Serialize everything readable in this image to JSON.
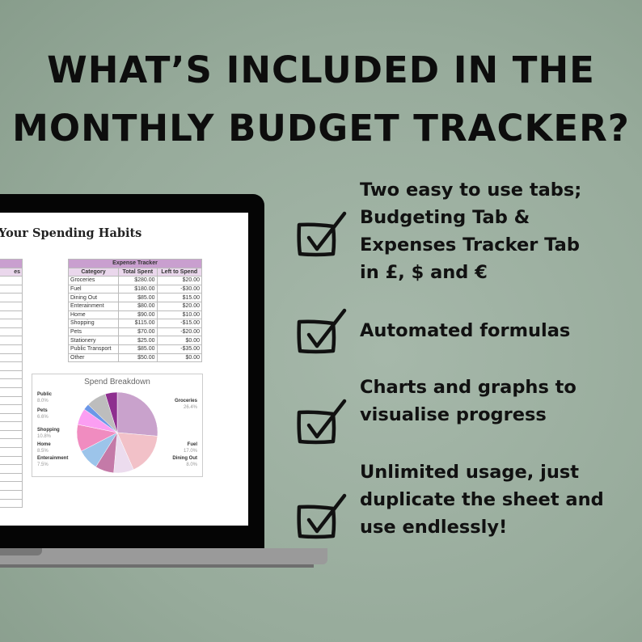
{
  "headline": {
    "line1": "WHAT’S INCLUDED IN THE",
    "line2": "MONTHLY BUDGET TRACKER?"
  },
  "colors": {
    "background": "#9aae9e",
    "text": "#111111",
    "accent_header": "#c99fcf",
    "accent_subheader": "#ead7ec"
  },
  "features": [
    {
      "icon": "checkbox-icon",
      "lines": [
        "Two easy to use tabs;",
        "Budgeting Tab &",
        "Expenses Tracker Tab",
        "in £, $ and €"
      ]
    },
    {
      "icon": "checkbox-icon",
      "lines": [
        "Automated formulas"
      ]
    },
    {
      "icon": "checkbox-icon",
      "lines": [
        "Charts and graphs to",
        "visualise progress"
      ]
    },
    {
      "icon": "checkbox-icon",
      "lines": [
        "Unlimited usage, just",
        "duplicate the sheet and",
        "use endlessly!"
      ]
    }
  ],
  "laptop": {
    "sheet_title": "Your Spending Habits",
    "left_table": {
      "header_partial": "es"
    },
    "expense_tracker": {
      "title": "Expense Tracker",
      "columns": [
        "Category",
        "Total Spent",
        "Left to Spend"
      ],
      "rows": [
        [
          "Groceries",
          "$280.00",
          "$20.00"
        ],
        [
          "Fuel",
          "$180.00",
          "-$30.00"
        ],
        [
          "Dining Out",
          "$85.00",
          "$15.00"
        ],
        [
          "Enterainment",
          "$80.00",
          "$20.00"
        ],
        [
          "Home",
          "$90.00",
          "$10.00"
        ],
        [
          "Shopping",
          "$115.00",
          "-$15.00"
        ],
        [
          "Pets",
          "$70.00",
          "-$20.00"
        ],
        [
          "Stationery",
          "$25.00",
          "$0.00"
        ],
        [
          "Public Transport",
          "$85.00",
          "-$35.00"
        ],
        [
          "Other",
          "$50.00",
          "$0.00"
        ]
      ]
    },
    "chart_data": {
      "type": "pie",
      "title": "Spend Breakdown",
      "slices": [
        {
          "name": "Groceries",
          "value": 26.4,
          "label": "26.4%",
          "color": "#c9a2cc"
        },
        {
          "name": "Fuel",
          "value": 17.0,
          "label": "17.0%",
          "color": "#f2c1c8"
        },
        {
          "name": "Dining Out",
          "value": 8.0,
          "label": "8.0%",
          "color": "#ecdcee"
        },
        {
          "name": "Enterainment",
          "value": 7.5,
          "label": "7.5%",
          "color": "#c47aa8"
        },
        {
          "name": "Home",
          "value": 8.5,
          "label": "8.5%",
          "color": "#9cc4ea"
        },
        {
          "name": "Shopping",
          "value": 10.8,
          "label": "10.8%",
          "color": "#f08cc0"
        },
        {
          "name": "Pets",
          "value": 6.6,
          "label": "6.6%",
          "color": "#fb9ef2"
        },
        {
          "name": "Stationery",
          "value": 2.4,
          "color": "#6b97e8"
        },
        {
          "name": "Public",
          "value": 8.0,
          "label": "8.0%",
          "color": "#bdbdbd"
        },
        {
          "name": "Other",
          "value": 4.8,
          "color": "#8e2f8f"
        }
      ]
    }
  }
}
